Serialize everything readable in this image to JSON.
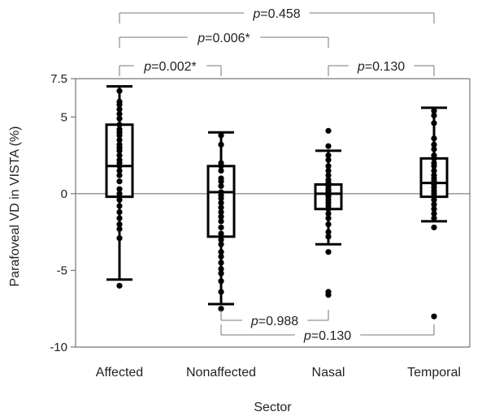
{
  "chart_data": {
    "type": "box",
    "xlabel": "Sector",
    "ylabel": "Parafoveal VD in VISTA (%)",
    "ylim": [
      -10,
      7.5
    ],
    "yticks": [
      {
        "value": 7.5,
        "label": "7.5"
      },
      {
        "value": 5,
        "label": "5"
      },
      {
        "value": 0,
        "label": "0"
      },
      {
        "value": -5,
        "label": "-5"
      },
      {
        "value": -10,
        "label": "-10"
      }
    ],
    "reference_line": 0,
    "categories": [
      "Affected",
      "Nonaffected",
      "Nasal",
      "Temporal"
    ],
    "boxes": [
      {
        "category": "Affected",
        "whisker_low": -5.6,
        "q1": -0.2,
        "median": 1.8,
        "q3": 4.5,
        "whisker_high": 7.0,
        "points": [
          6.7,
          6.0,
          5.8,
          5.5,
          5.2,
          4.9,
          4.5,
          4.2,
          4.0,
          3.8,
          3.5,
          3.2,
          3.0,
          2.8,
          2.5,
          2.2,
          2.0,
          1.8,
          1.5,
          1.2,
          0.8,
          0.3,
          0.0,
          -0.4,
          -0.8,
          -1.2,
          -1.6,
          -2.0,
          -2.3,
          -2.9,
          -6.0
        ]
      },
      {
        "category": "Nonaffected",
        "whisker_low": -7.2,
        "q1": -2.8,
        "median": 0.1,
        "q3": 1.8,
        "whisker_high": 4.0,
        "points": [
          3.8,
          3.2,
          2.0,
          1.8,
          1.5,
          1.0,
          0.8,
          0.5,
          0.1,
          -0.1,
          -0.3,
          -0.6,
          -0.9,
          -1.2,
          -1.5,
          -1.8,
          -2.2,
          -2.6,
          -3.0,
          -3.3,
          -3.8,
          -4.1,
          -4.5,
          -4.9,
          -5.2,
          -5.7,
          -6.4,
          -7.5
        ]
      },
      {
        "category": "Nasal",
        "whisker_low": -3.3,
        "q1": -1.0,
        "median": 0.0,
        "q3": 0.6,
        "whisker_high": 2.8,
        "points": [
          4.1,
          3.1,
          2.5,
          2.2,
          1.8,
          1.5,
          1.2,
          0.9,
          0.7,
          0.5,
          0.3,
          0.2,
          0.1,
          0.0,
          -0.1,
          -0.2,
          -0.4,
          -0.6,
          -0.8,
          -1.0,
          -1.3,
          -1.6,
          -2.0,
          -2.5,
          -2.8,
          -3.8,
          -6.4,
          -6.6
        ]
      },
      {
        "category": "Temporal",
        "whisker_low": -1.8,
        "q1": -0.2,
        "median": 0.7,
        "q3": 2.3,
        "whisker_high": 5.6,
        "points": [
          5.4,
          5.1,
          4.6,
          3.6,
          3.2,
          2.9,
          2.5,
          2.3,
          2.0,
          1.8,
          1.5,
          1.2,
          1.0,
          0.8,
          0.6,
          0.4,
          0.2,
          0.0,
          -0.2,
          -0.4,
          -0.7,
          -1.0,
          -1.3,
          -1.6,
          -2.2,
          -8.0
        ]
      }
    ],
    "comparisons": [
      {
        "from": "Affected",
        "to": "Temporal",
        "p_label": "p",
        "p_value": "=0.458",
        "position": "top"
      },
      {
        "from": "Affected",
        "to": "Nasal",
        "p_label": "p",
        "p_value": "=0.006*",
        "position": "top"
      },
      {
        "from": "Affected",
        "to": "Nonaffected",
        "p_label": "p",
        "p_value": "=0.002*",
        "position": "top"
      },
      {
        "from": "Nasal",
        "to": "Temporal",
        "p_label": "p",
        "p_value": "=0.130",
        "position": "top"
      },
      {
        "from": "Nonaffected",
        "to": "Nasal",
        "p_label": "p",
        "p_value": "=0.988",
        "position": "bottom"
      },
      {
        "from": "Nonaffected",
        "to": "Temporal",
        "p_label": "p",
        "p_value": "=0.130",
        "position": "bottom"
      }
    ]
  }
}
